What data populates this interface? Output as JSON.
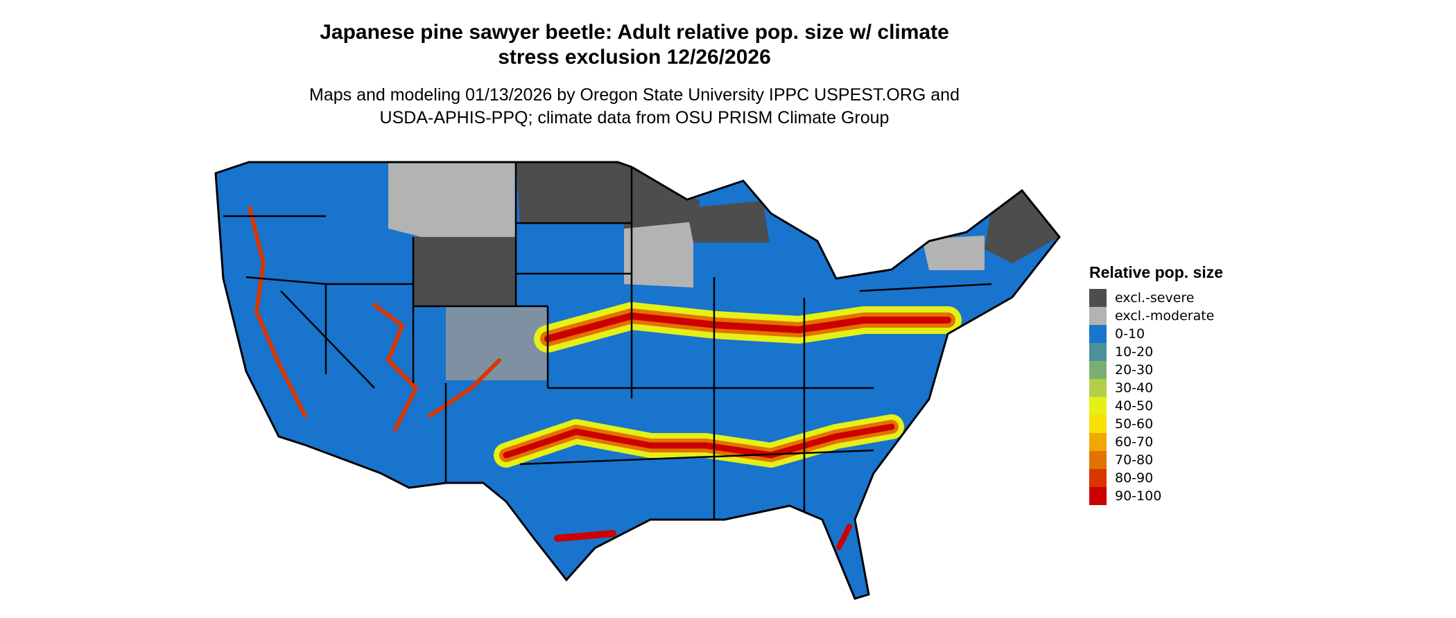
{
  "title_line1": "Japanese pine sawyer beetle: Adult relative pop. size w/ climate",
  "title_line2": "stress exclusion 12/26/2026",
  "subtitle_line1": "Maps and modeling 01/13/2026 by Oregon State University IPPC USPEST.ORG and",
  "subtitle_line2": "USDA-APHIS-PPQ; climate data from OSU PRISM Climate Group",
  "legend": {
    "title": "Relative pop. size",
    "items": [
      {
        "label": "excl.-severe",
        "color": "#4d4d4d"
      },
      {
        "label": "excl.-moderate",
        "color": "#b3b3b3"
      },
      {
        "label": "0-10",
        "color": "#1874cd"
      },
      {
        "label": "10-20",
        "color": "#4a919b"
      },
      {
        "label": "20-30",
        "color": "#7cae73"
      },
      {
        "label": "30-40",
        "color": "#b2d047"
      },
      {
        "label": "40-50",
        "color": "#e5f016"
      },
      {
        "label": "50-60",
        "color": "#f7e100"
      },
      {
        "label": "60-70",
        "color": "#f0a800"
      },
      {
        "label": "70-80",
        "color": "#e37200"
      },
      {
        "label": "80-90",
        "color": "#d93600"
      },
      {
        "label": "90-100",
        "color": "#cc0000"
      }
    ]
  }
}
